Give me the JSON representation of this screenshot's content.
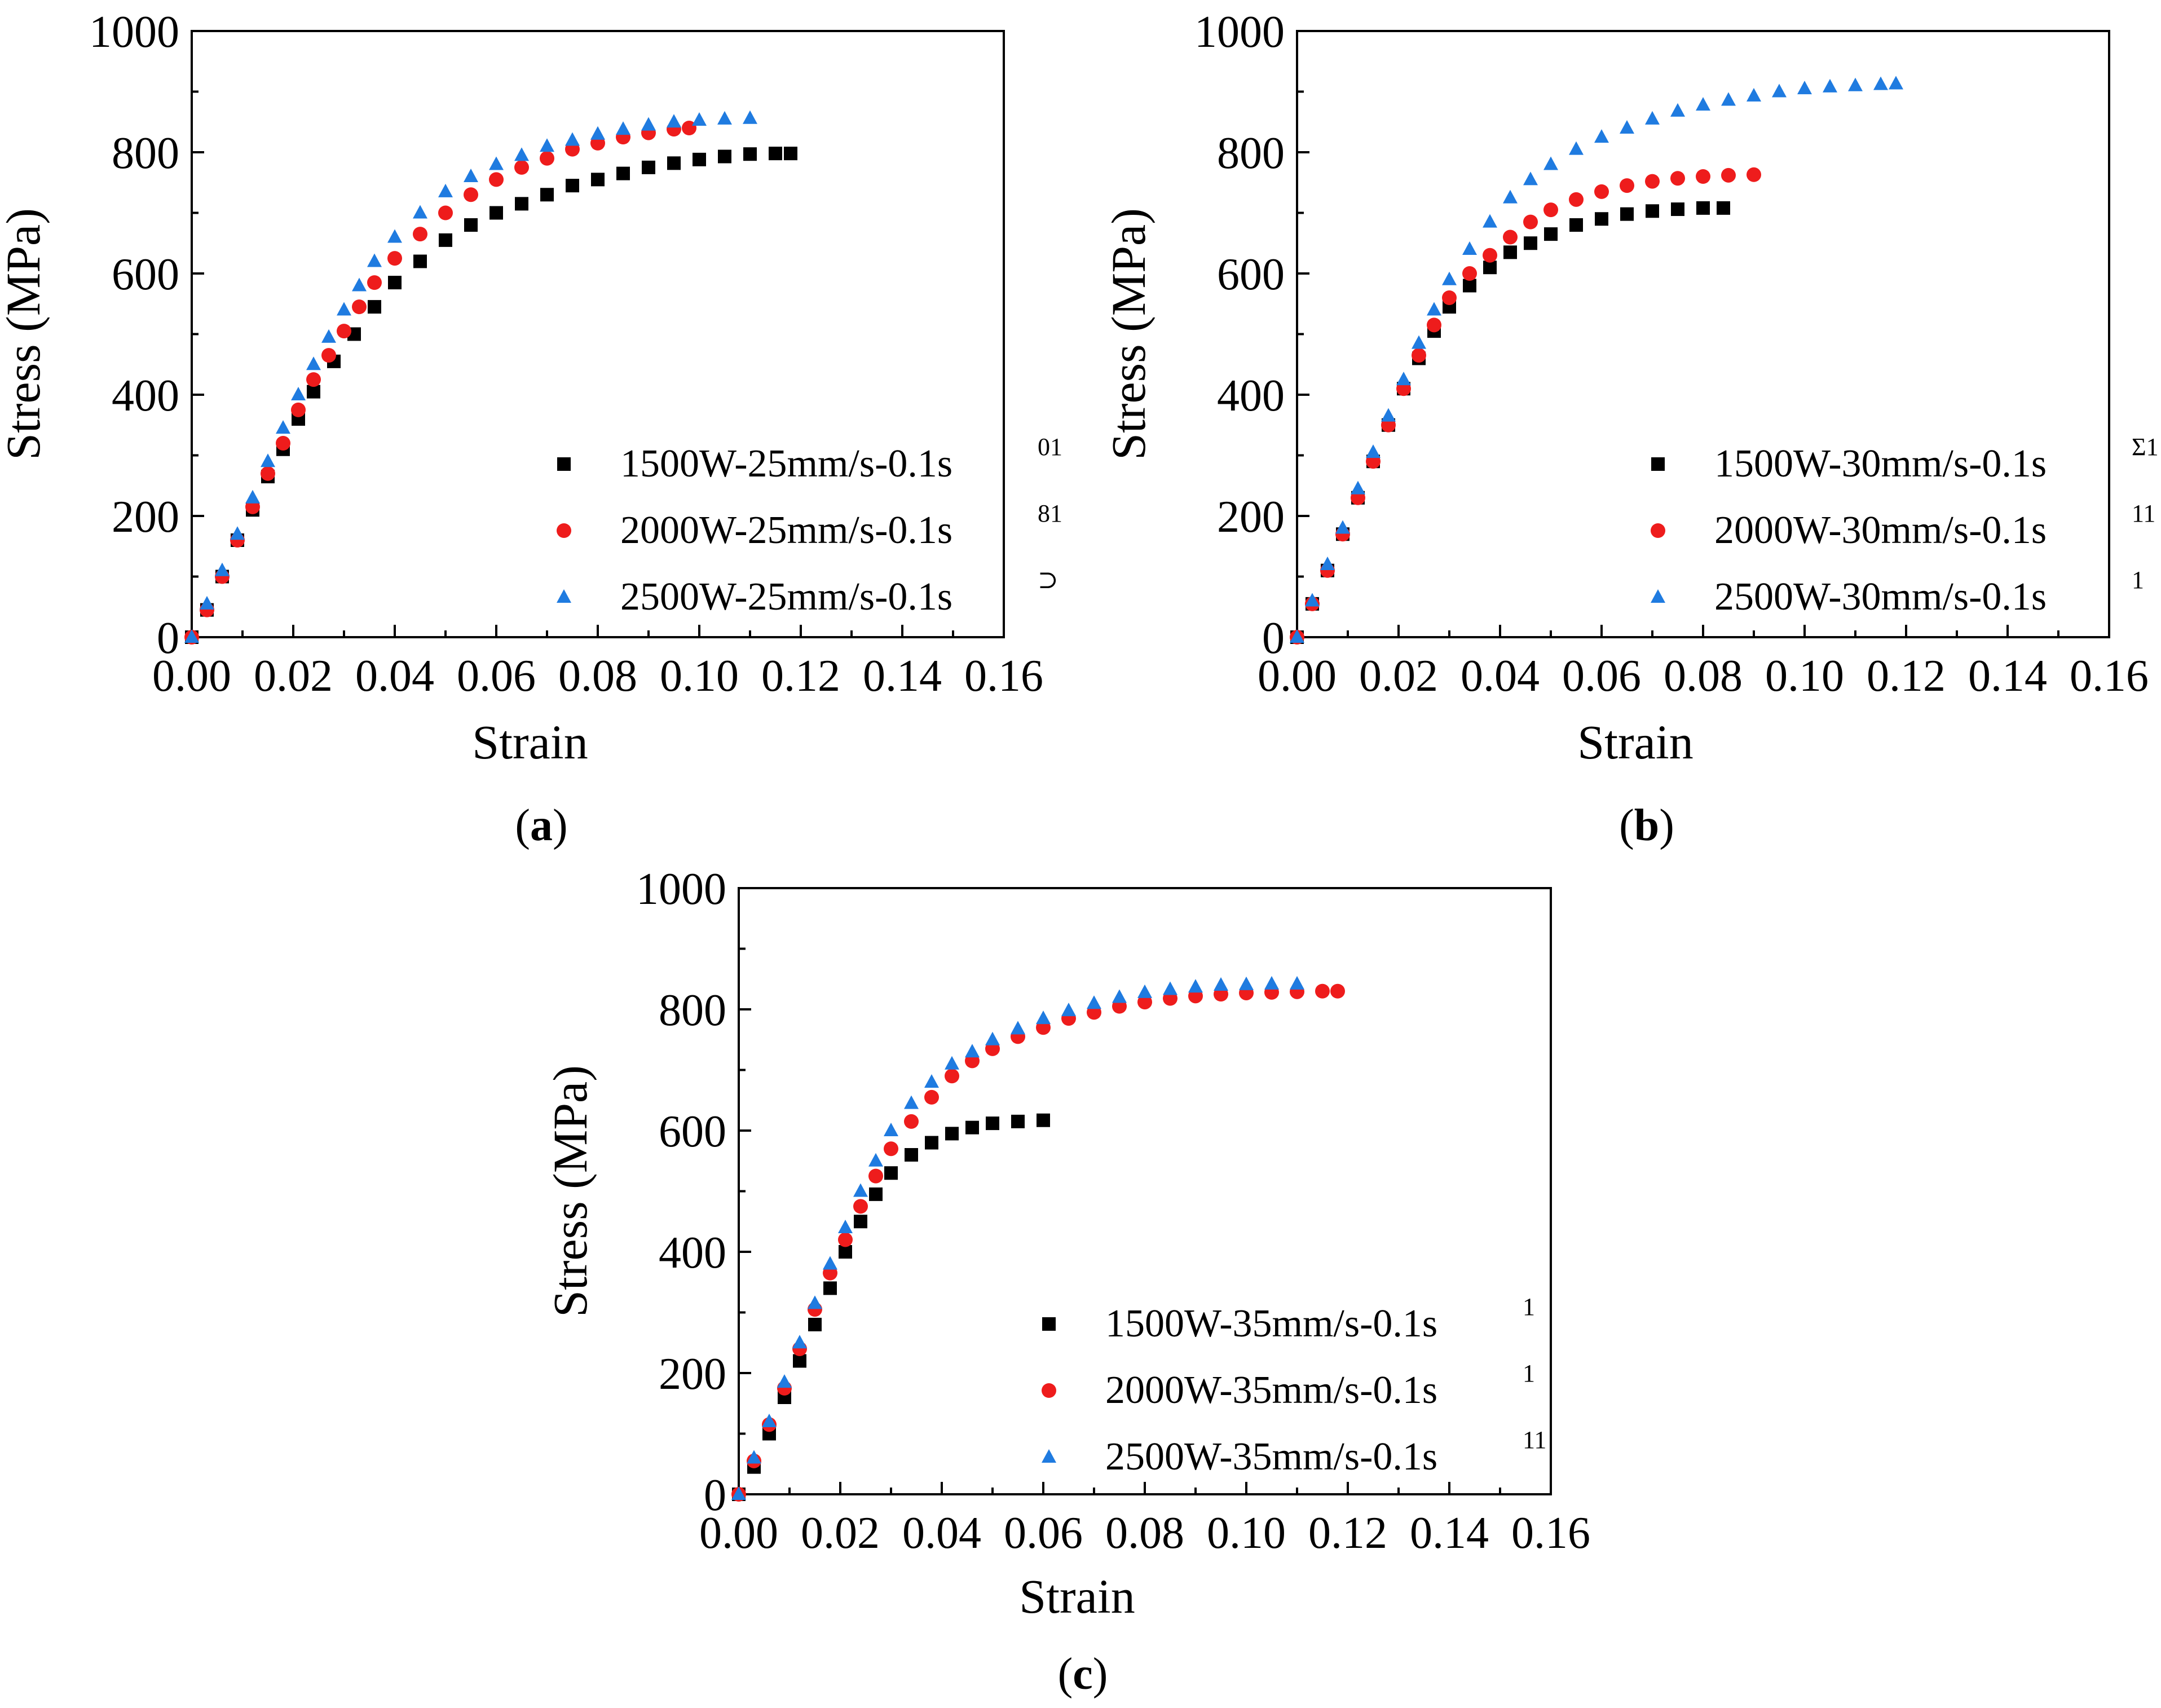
{
  "figure": {
    "colors": {
      "s1500": "#000000",
      "s2000": "#ee1c1c",
      "s2500": "#1f7be0"
    }
  },
  "chart_data": [
    {
      "type": "scatter",
      "panel": "a",
      "panel_label": "a",
      "xlabel": "Strain",
      "ylabel": "Stress (MPa)",
      "xlim": [
        0,
        0.16
      ],
      "ylim": [
        0,
        1000
      ],
      "xticks": [
        "0.00",
        "0.02",
        "0.04",
        "0.06",
        "0.08",
        "0.10",
        "0.12",
        "0.14",
        "0.16"
      ],
      "yticks": [
        "0",
        "200",
        "400",
        "600",
        "800",
        "1000"
      ],
      "legend_position": "bottom-right",
      "series": [
        {
          "name": "1500W-25mm/s-0.1s",
          "sup": "01",
          "marker": "square",
          "color": "#000000",
          "points": [
            [
              0,
              0
            ],
            [
              0.003,
              45
            ],
            [
              0.006,
              100
            ],
            [
              0.009,
              160
            ],
            [
              0.012,
              210
            ],
            [
              0.015,
              265
            ],
            [
              0.018,
              310
            ],
            [
              0.021,
              360
            ],
            [
              0.024,
              405
            ],
            [
              0.028,
              455
            ],
            [
              0.032,
              500
            ],
            [
              0.036,
              545
            ],
            [
              0.04,
              585
            ],
            [
              0.045,
              620
            ],
            [
              0.05,
              655
            ],
            [
              0.055,
              680
            ],
            [
              0.06,
              700
            ],
            [
              0.065,
              715
            ],
            [
              0.07,
              730
            ],
            [
              0.075,
              745
            ],
            [
              0.08,
              755
            ],
            [
              0.085,
              765
            ],
            [
              0.09,
              775
            ],
            [
              0.095,
              782
            ],
            [
              0.1,
              788
            ],
            [
              0.105,
              793
            ],
            [
              0.11,
              797
            ],
            [
              0.115,
              798
            ],
            [
              0.118,
              798
            ]
          ]
        },
        {
          "name": "2000W-25mm/s-0.1s",
          "sup": "81",
          "marker": "circle",
          "color": "#ee1c1c",
          "points": [
            [
              0,
              0
            ],
            [
              0.003,
              45
            ],
            [
              0.006,
              100
            ],
            [
              0.009,
              160
            ],
            [
              0.012,
              215
            ],
            [
              0.015,
              270
            ],
            [
              0.018,
              320
            ],
            [
              0.021,
              375
            ],
            [
              0.024,
              425
            ],
            [
              0.027,
              465
            ],
            [
              0.03,
              505
            ],
            [
              0.033,
              545
            ],
            [
              0.036,
              585
            ],
            [
              0.04,
              625
            ],
            [
              0.045,
              665
            ],
            [
              0.05,
              700
            ],
            [
              0.055,
              730
            ],
            [
              0.06,
              755
            ],
            [
              0.065,
              775
            ],
            [
              0.07,
              790
            ],
            [
              0.075,
              805
            ],
            [
              0.08,
              815
            ],
            [
              0.085,
              825
            ],
            [
              0.09,
              832
            ],
            [
              0.095,
              838
            ],
            [
              0.098,
              840
            ]
          ]
        },
        {
          "name": "2500W-25mm/s-0.1s",
          "sup": "⊃",
          "marker": "triangle",
          "color": "#1f7be0",
          "points": [
            [
              0,
              0
            ],
            [
              0.003,
              55
            ],
            [
              0.006,
              110
            ],
            [
              0.009,
              170
            ],
            [
              0.012,
              230
            ],
            [
              0.015,
              290
            ],
            [
              0.018,
              345
            ],
            [
              0.021,
              400
            ],
            [
              0.024,
              450
            ],
            [
              0.027,
              495
            ],
            [
              0.03,
              540
            ],
            [
              0.033,
              580
            ],
            [
              0.036,
              620
            ],
            [
              0.04,
              660
            ],
            [
              0.045,
              700
            ],
            [
              0.05,
              735
            ],
            [
              0.055,
              760
            ],
            [
              0.06,
              780
            ],
            [
              0.065,
              795
            ],
            [
              0.07,
              810
            ],
            [
              0.075,
              820
            ],
            [
              0.08,
              830
            ],
            [
              0.085,
              838
            ],
            [
              0.09,
              845
            ],
            [
              0.095,
              850
            ],
            [
              0.1,
              853
            ],
            [
              0.105,
              855
            ],
            [
              0.11,
              856
            ]
          ]
        }
      ]
    },
    {
      "type": "scatter",
      "panel": "b",
      "panel_label": "b",
      "xlabel": "Strain",
      "ylabel": "Stress (MPa)",
      "xlim": [
        0,
        0.16
      ],
      "ylim": [
        0,
        1000
      ],
      "xticks": [
        "0.00",
        "0.02",
        "0.04",
        "0.06",
        "0.08",
        "0.10",
        "0.12",
        "0.14",
        "0.16"
      ],
      "yticks": [
        "0",
        "200",
        "400",
        "600",
        "800",
        "1000"
      ],
      "legend_position": "bottom-right",
      "series": [
        {
          "name": "1500W-30mm/s-0.1s",
          "sup": "Σ1",
          "marker": "square",
          "color": "#000000",
          "points": [
            [
              0,
              0
            ],
            [
              0.003,
              55
            ],
            [
              0.006,
              110
            ],
            [
              0.009,
              170
            ],
            [
              0.012,
              230
            ],
            [
              0.015,
              290
            ],
            [
              0.018,
              350
            ],
            [
              0.021,
              410
            ],
            [
              0.024,
              460
            ],
            [
              0.027,
              505
            ],
            [
              0.03,
              545
            ],
            [
              0.034,
              580
            ],
            [
              0.038,
              610
            ],
            [
              0.042,
              635
            ],
            [
              0.046,
              650
            ],
            [
              0.05,
              665
            ],
            [
              0.055,
              680
            ],
            [
              0.06,
              690
            ],
            [
              0.065,
              698
            ],
            [
              0.07,
              703
            ],
            [
              0.075,
              706
            ],
            [
              0.08,
              708
            ],
            [
              0.084,
              708
            ]
          ]
        },
        {
          "name": "2000W-30mm/s-0.1s",
          "sup": "11",
          "marker": "circle",
          "color": "#ee1c1c",
          "points": [
            [
              0,
              0
            ],
            [
              0.003,
              55
            ],
            [
              0.006,
              110
            ],
            [
              0.009,
              170
            ],
            [
              0.012,
              230
            ],
            [
              0.015,
              290
            ],
            [
              0.018,
              350
            ],
            [
              0.021,
              410
            ],
            [
              0.024,
              465
            ],
            [
              0.027,
              515
            ],
            [
              0.03,
              560
            ],
            [
              0.034,
              600
            ],
            [
              0.038,
              630
            ],
            [
              0.042,
              660
            ],
            [
              0.046,
              685
            ],
            [
              0.05,
              705
            ],
            [
              0.055,
              722
            ],
            [
              0.06,
              735
            ],
            [
              0.065,
              745
            ],
            [
              0.07,
              752
            ],
            [
              0.075,
              757
            ],
            [
              0.08,
              760
            ],
            [
              0.085,
              762
            ],
            [
              0.09,
              763
            ]
          ]
        },
        {
          "name": "2500W-30mm/s-0.1s",
          "sup": "1",
          "marker": "triangle",
          "color": "#1f7be0",
          "points": [
            [
              0,
              0
            ],
            [
              0.003,
              60
            ],
            [
              0.006,
              120
            ],
            [
              0.009,
              180
            ],
            [
              0.012,
              245
            ],
            [
              0.015,
              305
            ],
            [
              0.018,
              365
            ],
            [
              0.021,
              425
            ],
            [
              0.024,
              485
            ],
            [
              0.027,
              540
            ],
            [
              0.03,
              590
            ],
            [
              0.034,
              640
            ],
            [
              0.038,
              685
            ],
            [
              0.042,
              725
            ],
            [
              0.046,
              755
            ],
            [
              0.05,
              780
            ],
            [
              0.055,
              805
            ],
            [
              0.06,
              825
            ],
            [
              0.065,
              840
            ],
            [
              0.07,
              855
            ],
            [
              0.075,
              868
            ],
            [
              0.08,
              878
            ],
            [
              0.085,
              886
            ],
            [
              0.09,
              893
            ],
            [
              0.095,
              900
            ],
            [
              0.1,
              905
            ],
            [
              0.105,
              908
            ],
            [
              0.11,
              910
            ],
            [
              0.115,
              912
            ],
            [
              0.118,
              913
            ]
          ]
        }
      ]
    },
    {
      "type": "scatter",
      "panel": "c",
      "panel_label": "c",
      "xlabel": "Strain",
      "ylabel": "Stress (MPa)",
      "xlim": [
        0,
        0.16
      ],
      "ylim": [
        0,
        1000
      ],
      "xticks": [
        "0.00",
        "0.02",
        "0.04",
        "0.06",
        "0.08",
        "0.10",
        "0.12",
        "0.14",
        "0.16"
      ],
      "yticks": [
        "0",
        "200",
        "400",
        "600",
        "800",
        "1000"
      ],
      "legend_position": "bottom-right",
      "series": [
        {
          "name": "1500W-35mm/s-0.1s",
          "sup": "1",
          "marker": "square",
          "color": "#000000",
          "points": [
            [
              0,
              0
            ],
            [
              0.003,
              45
            ],
            [
              0.006,
              100
            ],
            [
              0.009,
              160
            ],
            [
              0.012,
              220
            ],
            [
              0.015,
              280
            ],
            [
              0.018,
              340
            ],
            [
              0.021,
              400
            ],
            [
              0.024,
              450
            ],
            [
              0.027,
              495
            ],
            [
              0.03,
              530
            ],
            [
              0.034,
              560
            ],
            [
              0.038,
              580
            ],
            [
              0.042,
              595
            ],
            [
              0.046,
              605
            ],
            [
              0.05,
              612
            ],
            [
              0.055,
              615
            ],
            [
              0.06,
              617
            ]
          ]
        },
        {
          "name": "2000W-35mm/s-0.1s",
          "sup": "1",
          "marker": "circle",
          "color": "#ee1c1c",
          "points": [
            [
              0,
              0
            ],
            [
              0.003,
              55
            ],
            [
              0.006,
              115
            ],
            [
              0.009,
              175
            ],
            [
              0.012,
              240
            ],
            [
              0.015,
              305
            ],
            [
              0.018,
              365
            ],
            [
              0.021,
              420
            ],
            [
              0.024,
              475
            ],
            [
              0.027,
              525
            ],
            [
              0.03,
              570
            ],
            [
              0.034,
              615
            ],
            [
              0.038,
              655
            ],
            [
              0.042,
              690
            ],
            [
              0.046,
              715
            ],
            [
              0.05,
              735
            ],
            [
              0.055,
              755
            ],
            [
              0.06,
              770
            ],
            [
              0.065,
              785
            ],
            [
              0.07,
              795
            ],
            [
              0.075,
              805
            ],
            [
              0.08,
              812
            ],
            [
              0.085,
              818
            ],
            [
              0.09,
              822
            ],
            [
              0.095,
              825
            ],
            [
              0.1,
              827
            ],
            [
              0.105,
              828
            ],
            [
              0.11,
              829
            ],
            [
              0.115,
              830
            ],
            [
              0.118,
              830
            ]
          ]
        },
        {
          "name": "2500W-35mm/s-0.1s",
          "sup": "11",
          "marker": "triangle",
          "color": "#1f7be0",
          "points": [
            [
              0,
              0
            ],
            [
              0.003,
              60
            ],
            [
              0.006,
              120
            ],
            [
              0.009,
              185
            ],
            [
              0.012,
              250
            ],
            [
              0.015,
              315
            ],
            [
              0.018,
              380
            ],
            [
              0.021,
              440
            ],
            [
              0.024,
              500
            ],
            [
              0.027,
              550
            ],
            [
              0.03,
              600
            ],
            [
              0.034,
              645
            ],
            [
              0.038,
              680
            ],
            [
              0.042,
              710
            ],
            [
              0.046,
              730
            ],
            [
              0.05,
              750
            ],
            [
              0.055,
              768
            ],
            [
              0.06,
              785
            ],
            [
              0.065,
              798
            ],
            [
              0.07,
              810
            ],
            [
              0.075,
              820
            ],
            [
              0.08,
              828
            ],
            [
              0.085,
              833
            ],
            [
              0.09,
              837
            ],
            [
              0.095,
              840
            ],
            [
              0.1,
              841
            ],
            [
              0.105,
              842
            ],
            [
              0.11,
              842
            ]
          ]
        }
      ]
    }
  ]
}
